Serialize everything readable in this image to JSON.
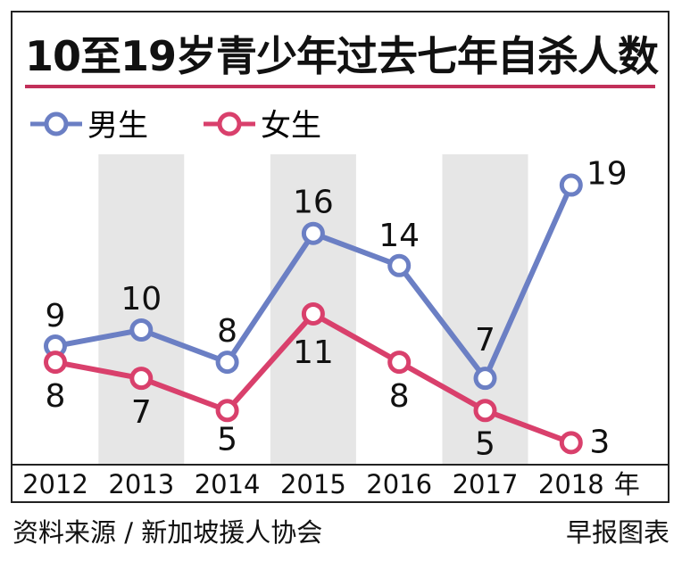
{
  "chart_data": {
    "type": "line",
    "title": "10至19岁青少年过去七年自杀人数",
    "categories": [
      "2012",
      "2013",
      "2014",
      "2015",
      "2016",
      "2017",
      "2018"
    ],
    "x_unit": "年",
    "series": [
      {
        "name": "男生",
        "values": [
          9,
          10,
          8,
          16,
          14,
          7,
          19
        ],
        "color": "#6b7fc4"
      },
      {
        "name": "女生",
        "values": [
          8,
          7,
          5,
          11,
          8,
          5,
          3
        ],
        "color": "#d9406c"
      }
    ],
    "ylim": [
      0,
      20
    ],
    "grid": false,
    "legend": "top-left"
  },
  "colors": {
    "title_rule": "#c2305a",
    "shade": "#e6e6e6",
    "male": "#6b7fc4",
    "female": "#d9406c"
  },
  "footer": {
    "source": "资料来源 / 新加坡援人协会",
    "credit": "早报图表"
  }
}
